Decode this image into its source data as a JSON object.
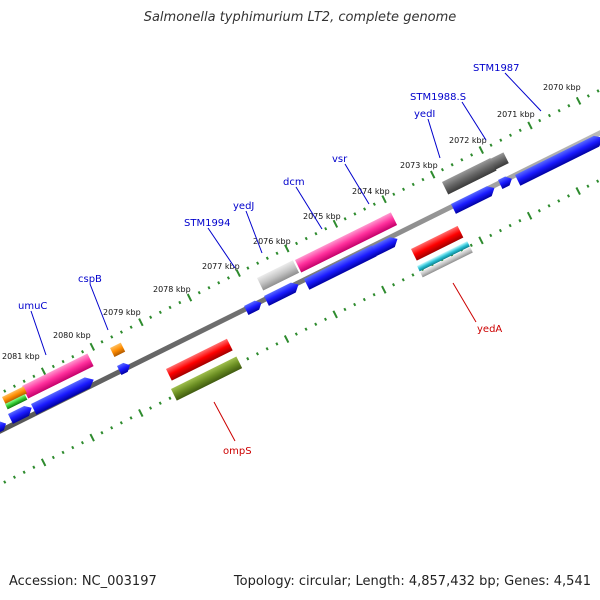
{
  "title": "Salmonella typhimurium LT2, complete genome",
  "footer": {
    "accession": "Accession: NC_003197",
    "info": "Topology: circular; Length: 4,857,432 bp; Genes: 4,541"
  },
  "colors": {
    "backbone": "#888888",
    "tick": "#2e8b2e",
    "forward_label": "#0000cc",
    "reverse_label": "#cc0000"
  },
  "scale_labels": [
    "2070 kbp",
    "2071 kbp",
    "2072 kbp",
    "2073 kbp",
    "2074 kbp",
    "2075 kbp",
    "2076 kbp",
    "2077 kbp",
    "2078 kbp",
    "2079 kbp",
    "2080 kbp",
    "2081 kbp"
  ],
  "forward_genes": [
    {
      "label": "STM1987"
    },
    {
      "label": "STM1988.S"
    },
    {
      "label": "yedI"
    },
    {
      "label": "vsr"
    },
    {
      "label": "dcm"
    },
    {
      "label": "yedJ"
    },
    {
      "label": "STM1994"
    },
    {
      "label": "cspB"
    },
    {
      "label": "umuC"
    }
  ],
  "reverse_genes": [
    {
      "label": "yedA"
    },
    {
      "label": "ompS"
    }
  ]
}
